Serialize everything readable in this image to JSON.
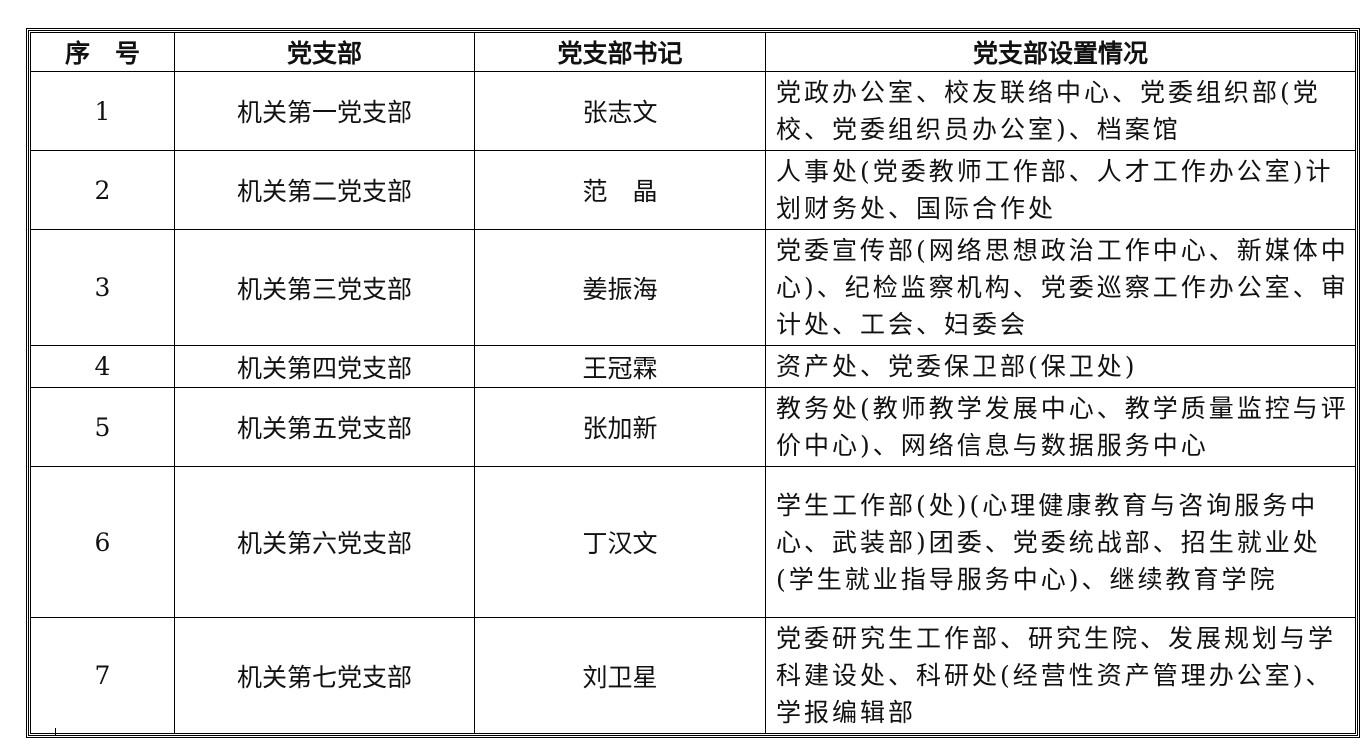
{
  "table": {
    "headers": [
      "序　号",
      "党支部",
      "党支部书记",
      "党支部设置情况"
    ],
    "rows": [
      {
        "no": "1",
        "branch": "机关第一党支部",
        "secretary": "张志文",
        "setup": "党政办公室、校友联络中心、党委组织部(党校、党委组织员办公室)、档案馆"
      },
      {
        "no": "2",
        "branch": "机关第二党支部",
        "secretary": "范　晶",
        "setup": "人事处(党委教师工作部、人才工作办公室)计划财务处、国际合作处"
      },
      {
        "no": "3",
        "branch": "机关第三党支部",
        "secretary": "姜振海",
        "setup": "党委宣传部(网络思想政治工作中心、新媒体中心)、纪检监察机构、党委巡察工作办公室、审计处、工会、妇委会"
      },
      {
        "no": "4",
        "branch": "机关第四党支部",
        "secretary": "王冠霖",
        "setup": "资产处、党委保卫部(保卫处)"
      },
      {
        "no": "5",
        "branch": "机关第五党支部",
        "secretary": "张加新",
        "setup": "教务处(教师教学发展中心、教学质量监控与评价中心)、网络信息与数据服务中心"
      },
      {
        "no": "6",
        "branch": "机关第六党支部",
        "secretary": "丁汉文",
        "setup": "学生工作部(处)(心理健康教育与咨询服务中心、武装部)团委、党委统战部、招生就业处(学生就业指导服务中心)、继续教育学院"
      },
      {
        "no": "7",
        "branch": "机关第七党支部",
        "secretary": "刘卫星",
        "setup": "党委研究生工作部、研究生院、发展规划与学科建设处、科研处(经营性资产管理办公室)、学报编辑部"
      }
    ]
  }
}
